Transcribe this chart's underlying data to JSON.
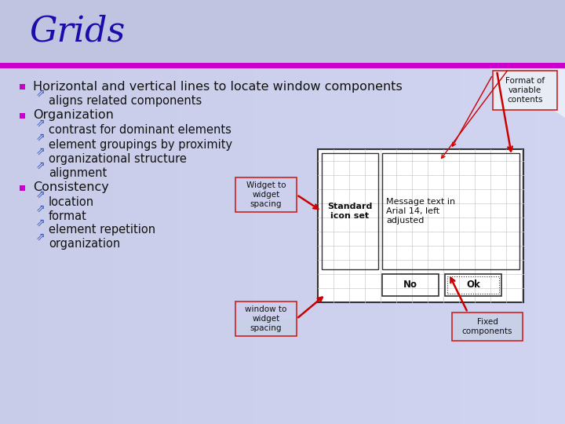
{
  "title": "Grids",
  "title_color": "#1a0dab",
  "title_fontsize": 32,
  "bg_left": "#c8cce8",
  "bg_right": "#d8dcf0",
  "bg_corner": "#dce0f4",
  "magenta_line_color": "#cc00cc",
  "bullet_color": "#cc00cc",
  "text_color": "#111111",
  "sub_arrow_color": "#3355bb",
  "bullet1": "Horizontal and vertical lines to locate window components",
  "sub1": "aligns related components",
  "bullet2": "Organization",
  "sub2a": "contrast for dominant elements",
  "sub2b": "element groupings by proximity",
  "sub2c": "organizational structure",
  "sub2d": "alignment",
  "bullet3": "Consistency",
  "sub3a": "location",
  "sub3b": "format",
  "sub3c": "element repetition",
  "sub3d": "organization",
  "annotation1": "Format of\nvariable\ncontents",
  "annotation2": "Widget to\nwidget\nspacing",
  "annotation3": "window to\nwidget\nspacing",
  "annotation4": "Fixed\ncomponents",
  "dialog_icon_label": "Standard\nicon set",
  "dialog_msg": "Message text in\nArial 14, left\nadjusted",
  "dialog_btn1": "No",
  "dialog_btn2": "Ok",
  "ann_border_color": "#cc2222",
  "red_arrow_color": "#cc0000",
  "dialog_grid_color": "#cccccc",
  "dialog_border_color": "#333333"
}
